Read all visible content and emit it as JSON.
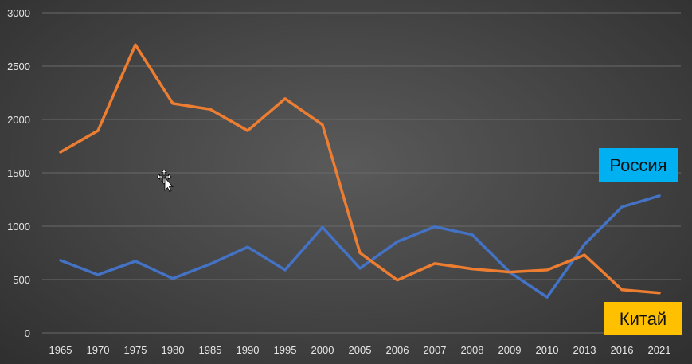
{
  "chart_data": {
    "type": "line",
    "title": "",
    "xlabel": "",
    "ylabel": "",
    "ylim": [
      0,
      3000
    ],
    "yticks": [
      0,
      500,
      1000,
      1500,
      2000,
      2500,
      3000
    ],
    "ytick_labels": [
      "0",
      "500",
      "1000",
      "1500",
      "2000",
      "2500",
      "3000"
    ],
    "grid": true,
    "categories": [
      "1965",
      "1970",
      "1975",
      "1980",
      "1985",
      "1990",
      "1995",
      "2000",
      "2005",
      "2006",
      "2007",
      "2008",
      "2009",
      "2010",
      "2013",
      "2016",
      "2021"
    ],
    "series": [
      {
        "name": "Россия",
        "color": "#4472c4",
        "values": [
          680,
          545,
          672,
          510,
          645,
          805,
          590,
          990,
          605,
          855,
          995,
          920,
          570,
          335,
          830,
          1180,
          1285
        ]
      },
      {
        "name": "Китай",
        "color": "#ed7d31",
        "values": [
          1695,
          1895,
          2700,
          2150,
          2095,
          1895,
          2195,
          1950,
          750,
          495,
          650,
          600,
          570,
          590,
          730,
          405,
          375
        ]
      }
    ],
    "annotations": [
      {
        "text": "Россия",
        "series": "Россия",
        "box_color": "#00b0f0"
      },
      {
        "text": "Китай",
        "series": "Китай",
        "box_color": "#ffc000"
      }
    ]
  },
  "cursor": {
    "icon": "move-cursor-icon"
  }
}
